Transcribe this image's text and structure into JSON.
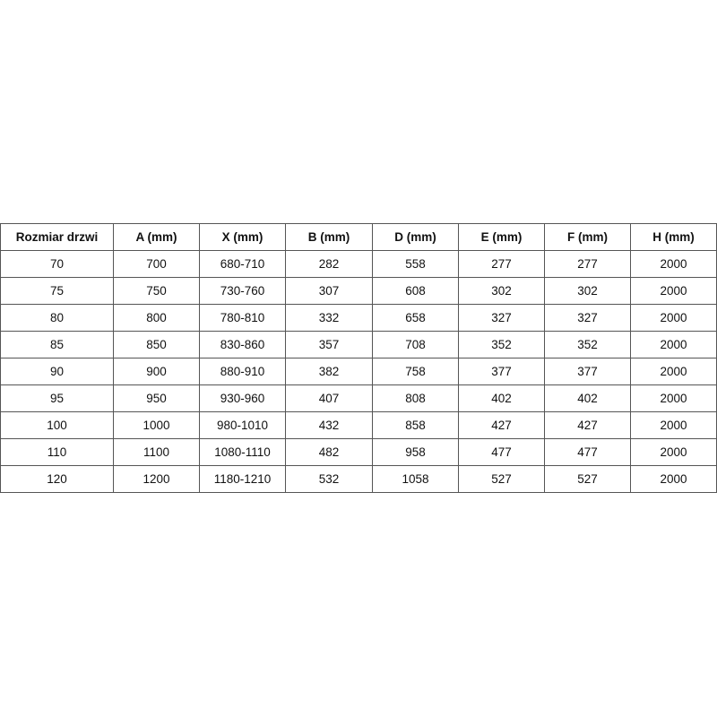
{
  "table": {
    "headers": [
      "Rozmiar drzwi",
      "A (mm)",
      "X (mm)",
      "B (mm)",
      "D (mm)",
      "E (mm)",
      "F (mm)",
      "H (mm)"
    ],
    "rows": [
      [
        "70",
        "700",
        "680-710",
        "282",
        "558",
        "277",
        "277",
        "2000"
      ],
      [
        "75",
        "750",
        "730-760",
        "307",
        "608",
        "302",
        "302",
        "2000"
      ],
      [
        "80",
        "800",
        "780-810",
        "332",
        "658",
        "327",
        "327",
        "2000"
      ],
      [
        "85",
        "850",
        "830-860",
        "357",
        "708",
        "352",
        "352",
        "2000"
      ],
      [
        "90",
        "900",
        "880-910",
        "382",
        "758",
        "377",
        "377",
        "2000"
      ],
      [
        "95",
        "950",
        "930-960",
        "407",
        "808",
        "402",
        "402",
        "2000"
      ],
      [
        "100",
        "1000",
        "980-1010",
        "432",
        "858",
        "427",
        "427",
        "2000"
      ],
      [
        "110",
        "1100",
        "1080-1110",
        "482",
        "958",
        "477",
        "477",
        "2000"
      ],
      [
        "120",
        "1200",
        "1180-1210",
        "532",
        "1058",
        "527",
        "527",
        "2000"
      ]
    ]
  }
}
